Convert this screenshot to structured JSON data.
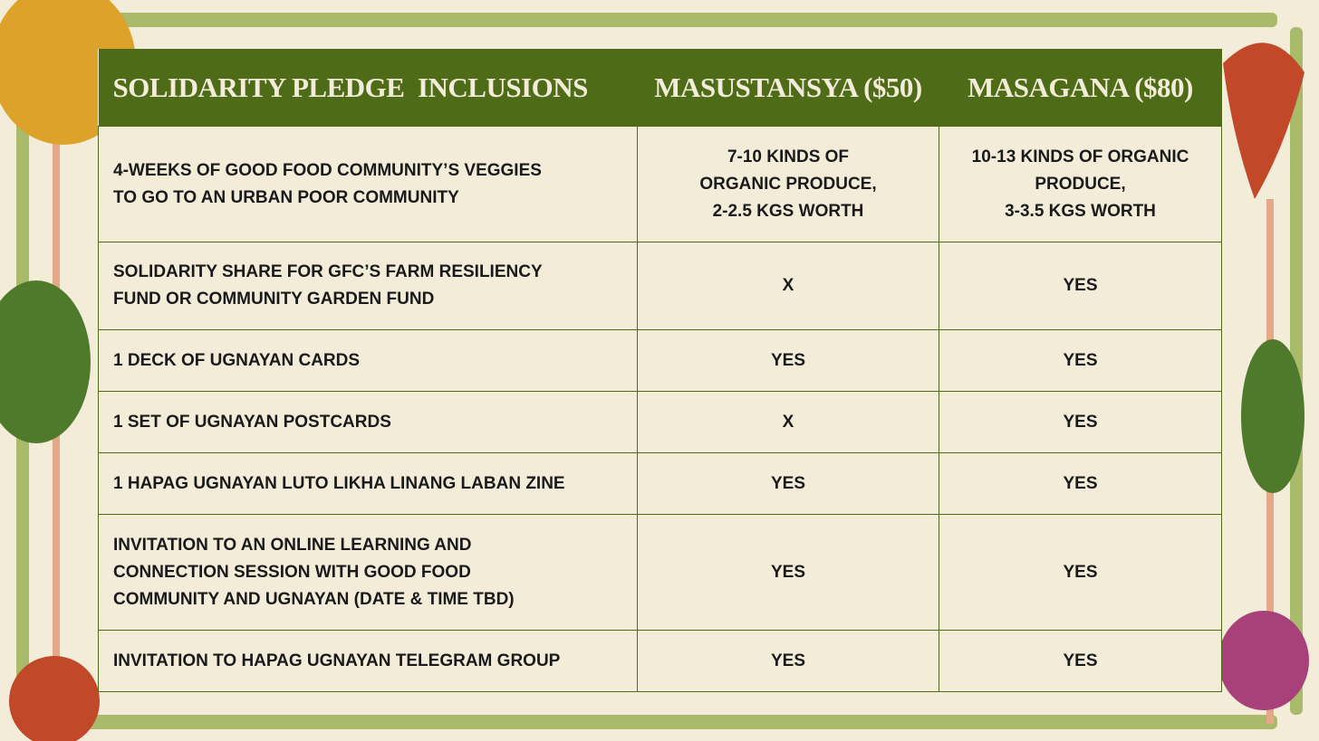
{
  "table": {
    "header": [
      "SOLIDARITY PLEDGE  INCLUSIONS",
      "MASUSTANSYA ($50)",
      "MASAGANA ($80)"
    ],
    "rows": [
      [
        [
          "4-WEEKS OF GOOD FOOD COMMUNITY’S VEGGIES",
          "TO GO TO AN URBAN POOR COMMUNITY"
        ],
        [
          "7-10 KINDS OF",
          "ORGANIC PRODUCE,",
          "2-2.5 KGS WORTH"
        ],
        [
          "10-13 KINDS OF ORGANIC",
          "PRODUCE,",
          "3-3.5 KGS WORTH"
        ]
      ],
      [
        [
          "SOLIDARITY SHARE FOR GFC’S FARM RESILIENCY",
          "FUND OR COMMUNITY GARDEN FUND"
        ],
        [
          "X"
        ],
        [
          "YES"
        ]
      ],
      [
        [
          "1 DECK OF UGNAYAN CARDS"
        ],
        [
          "YES"
        ],
        [
          "YES"
        ]
      ],
      [
        [
          "1 SET OF UGNAYAN POSTCARDS"
        ],
        [
          "X"
        ],
        [
          "YES"
        ]
      ],
      [
        [
          "1 HAPAG UGNAYAN LUTO LIKHA LINANG LABAN ZINE"
        ],
        [
          "YES"
        ],
        [
          "YES"
        ]
      ],
      [
        [
          "INVITATION TO AN ONLINE LEARNING AND",
          "CONNECTION SESSION WITH GOOD FOOD",
          "COMMUNITY AND UGNAYAN (DATE & TIME TBD)"
        ],
        [
          "YES"
        ],
        [
          "YES"
        ]
      ],
      [
        [
          "INVITATION TO HAPAG UGNAYAN TELEGRAM GROUP"
        ],
        [
          "YES"
        ],
        [
          "YES"
        ]
      ]
    ]
  }
}
